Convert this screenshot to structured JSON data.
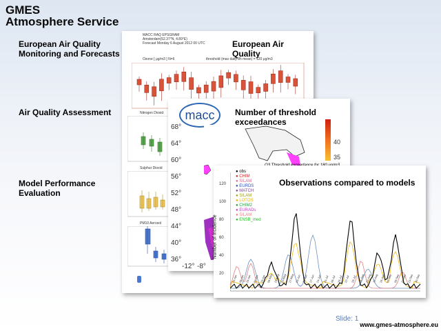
{
  "slide": {
    "title_line1": "GMES",
    "title_line2": "Atmosphere Service",
    "labels": {
      "forecasts": [
        "European Air Quality",
        "Monitoring and Forecasts"
      ],
      "assessment": "Air Quality Assessment",
      "evaluation": [
        "Model Performance",
        "Evaluation"
      ]
    },
    "card1": {
      "title": "European Air Quality",
      "header_lines": [
        "MACC RAQ EPSGRAM",
        "Amsterdam(52.37°N, 4.89°E)",
        "Forecast Monday 6 August 2012 00 UTC"
      ],
      "ozone_label": "Ozone [ μg/m3 ]   N=6",
      "threshold_label": "threshold (max daily 8h mean) = 120 μg/m3"
    },
    "card2": {
      "title": "Number of threshold exceedances",
      "logo_text": "macc",
      "colorbar_ticks": [
        "40",
        "35"
      ],
      "caption": "O3  Threshold exceedance for  180 μg/m3  year:  2007",
      "lat_ticks": [
        "68°",
        "64°",
        "60°",
        "56°",
        "52°",
        "48°",
        "44°",
        "40°",
        "36°"
      ],
      "lon_ticks": [
        "-12°",
        "-8°"
      ]
    },
    "left_panels": [
      "Nitrogen Dioxid",
      "Sulphur Dioxid",
      "PM10 Aerosol"
    ],
    "card3": {
      "title": "Observations compared to models",
      "ylabel": "Number of incidence",
      "legend": [
        "obs",
        "CHIM",
        "SILAM",
        "EURDS",
        "MATCH",
        "SILAM",
        "LOTOS",
        "CHIM2",
        "EURADs",
        "SILAM",
        "ENSB_med"
      ],
      "legend_colors": [
        "#000000",
        "#d02020",
        "#e06090",
        "#3050c0",
        "#8040a0",
        "#a0a000",
        "#f0b000",
        "#20a040",
        "#c040c0",
        "#f08080",
        "#20c020"
      ],
      "x_ticks": [
        "01-Apr",
        "08-Apr",
        "15-Apr",
        "22-Apr",
        "29-Apr",
        "06-May",
        "13-May",
        "20-May",
        "27-May",
        "03-Jun",
        "10-Jun",
        "17-Jun",
        "24-Jun",
        "01-Jul",
        "08-Jul",
        "15-Jul",
        "22-Jul",
        "29-Jul",
        "05-Aug",
        "12-Aug",
        "19-Aug",
        "26-Aug",
        "02-Sep",
        "09-Sep",
        "16-Sep",
        "23-Sep",
        "30-Sep"
      ],
      "y_ticks": [
        "120",
        "100",
        "80",
        "60",
        "40",
        "20"
      ]
    },
    "slide_number": "Slide: 1",
    "footer_url": "www.gmes-atmosphere.eu"
  },
  "colors": {
    "boxplot": "#d9533a",
    "text_blue": "#5a7ab0",
    "obs_line": "#000000",
    "model_line": "#6a8fc0"
  }
}
